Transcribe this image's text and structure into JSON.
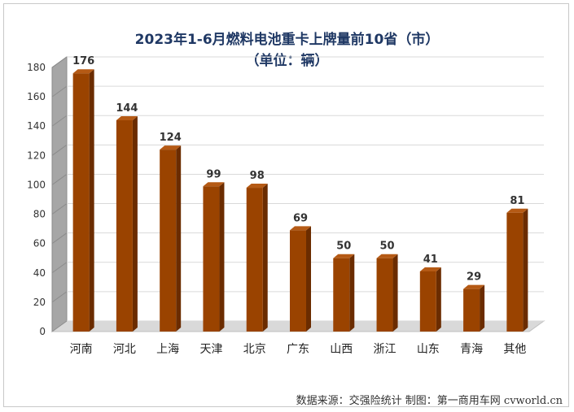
{
  "chart_data": {
    "type": "bar",
    "title": "2023年1-6月燃料电池重卡上牌量前10省（市）",
    "subtitle": "（单位：辆）",
    "categories": [
      "河南",
      "河北",
      "上海",
      "天津",
      "北京",
      "广东",
      "山西",
      "浙江",
      "山东",
      "青海",
      "其他"
    ],
    "values": [
      176,
      144,
      124,
      99,
      98,
      69,
      50,
      50,
      41,
      29,
      81
    ],
    "ylim": [
      0,
      180
    ],
    "yticks": [
      0,
      20,
      40,
      60,
      80,
      100,
      120,
      140,
      160,
      180
    ],
    "grid": true,
    "legend": "none",
    "colors": {
      "bar_front": "#9a4300",
      "bar_side": "#6b2c00",
      "bar_top": "#b55a15",
      "wall": "#a6a6a6"
    }
  },
  "source": "数据来源：交强险统计  制图：第一商用车网 cvworld.cn"
}
